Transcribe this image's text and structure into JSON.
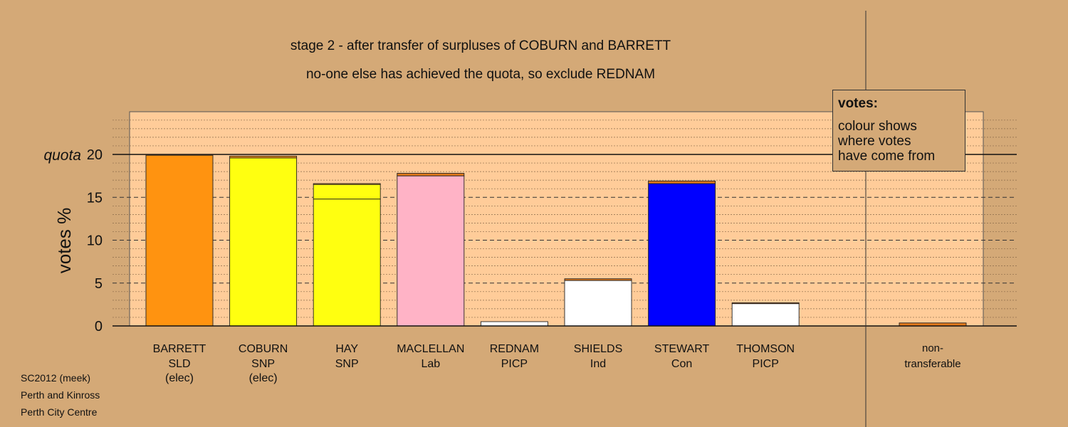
{
  "chart_data": {
    "type": "bar",
    "title": "stage 2 - after transfer of surpluses of COBURN and BARRETT",
    "subtitle": "no-one else has achieved the quota, so exclude REDNAM",
    "ylabel": "votes %",
    "ylim": [
      0,
      20
    ],
    "yticks": [
      "0",
      "5",
      "10",
      "15",
      "20"
    ],
    "quota": 20,
    "quota_label": "quota",
    "grid": true,
    "categories": [
      {
        "name": "BARRETT",
        "party": "SLD",
        "note": "(elec)"
      },
      {
        "name": "COBURN",
        "party": "SNP",
        "note": "(elec)"
      },
      {
        "name": "HAY",
        "party": "SNP",
        "note": ""
      },
      {
        "name": "MACLELLAN",
        "party": "Lab",
        "note": ""
      },
      {
        "name": "REDNAM",
        "party": "PICP",
        "note": ""
      },
      {
        "name": "SHIELDS",
        "party": "Ind",
        "note": ""
      },
      {
        "name": "STEWART",
        "party": "Con",
        "note": ""
      },
      {
        "name": "THOMSON",
        "party": "PICP",
        "note": ""
      }
    ],
    "bars": [
      {
        "segments": [
          {
            "value": 19.9,
            "color": "#ff9310"
          }
        ]
      },
      {
        "segments": [
          {
            "value": 19.6,
            "color": "#ffff10"
          },
          {
            "value": 0.2,
            "color": "#ff9310"
          }
        ]
      },
      {
        "segments": [
          {
            "value": 14.8,
            "color": "#ffff10"
          },
          {
            "value": 1.7,
            "color": "#ffff10"
          },
          {
            "value": 0.1,
            "color": "#ff9310"
          }
        ]
      },
      {
        "segments": [
          {
            "value": 17.5,
            "color": "#ffb3c6"
          },
          {
            "value": 0.3,
            "color": "#e0781a"
          }
        ]
      },
      {
        "segments": [
          {
            "value": 0.5,
            "color": "#ffffff"
          }
        ]
      },
      {
        "segments": [
          {
            "value": 5.3,
            "color": "#ffffff"
          },
          {
            "value": 0.2,
            "color": "#e0781a"
          }
        ]
      },
      {
        "segments": [
          {
            "value": 16.6,
            "color": "#0000ff"
          },
          {
            "value": 0.3,
            "color": "#e0781a"
          }
        ]
      },
      {
        "segments": [
          {
            "value": 2.6,
            "color": "#ffffff"
          },
          {
            "value": 0.1,
            "color": "#e0781a"
          }
        ]
      }
    ],
    "non_transferable": {
      "label": "non-\ntransferable",
      "value": 0.35,
      "color": "#e0781a"
    },
    "colors": {
      "background": "#d4a977",
      "plot_area": "#ffcc99"
    }
  },
  "legend": {
    "title": "votes:",
    "body": "colour shows\nwhere votes\nhave come from"
  },
  "footer": [
    "SC2012 (meek)",
    "Perth and Kinross",
    "Perth City Centre"
  ]
}
